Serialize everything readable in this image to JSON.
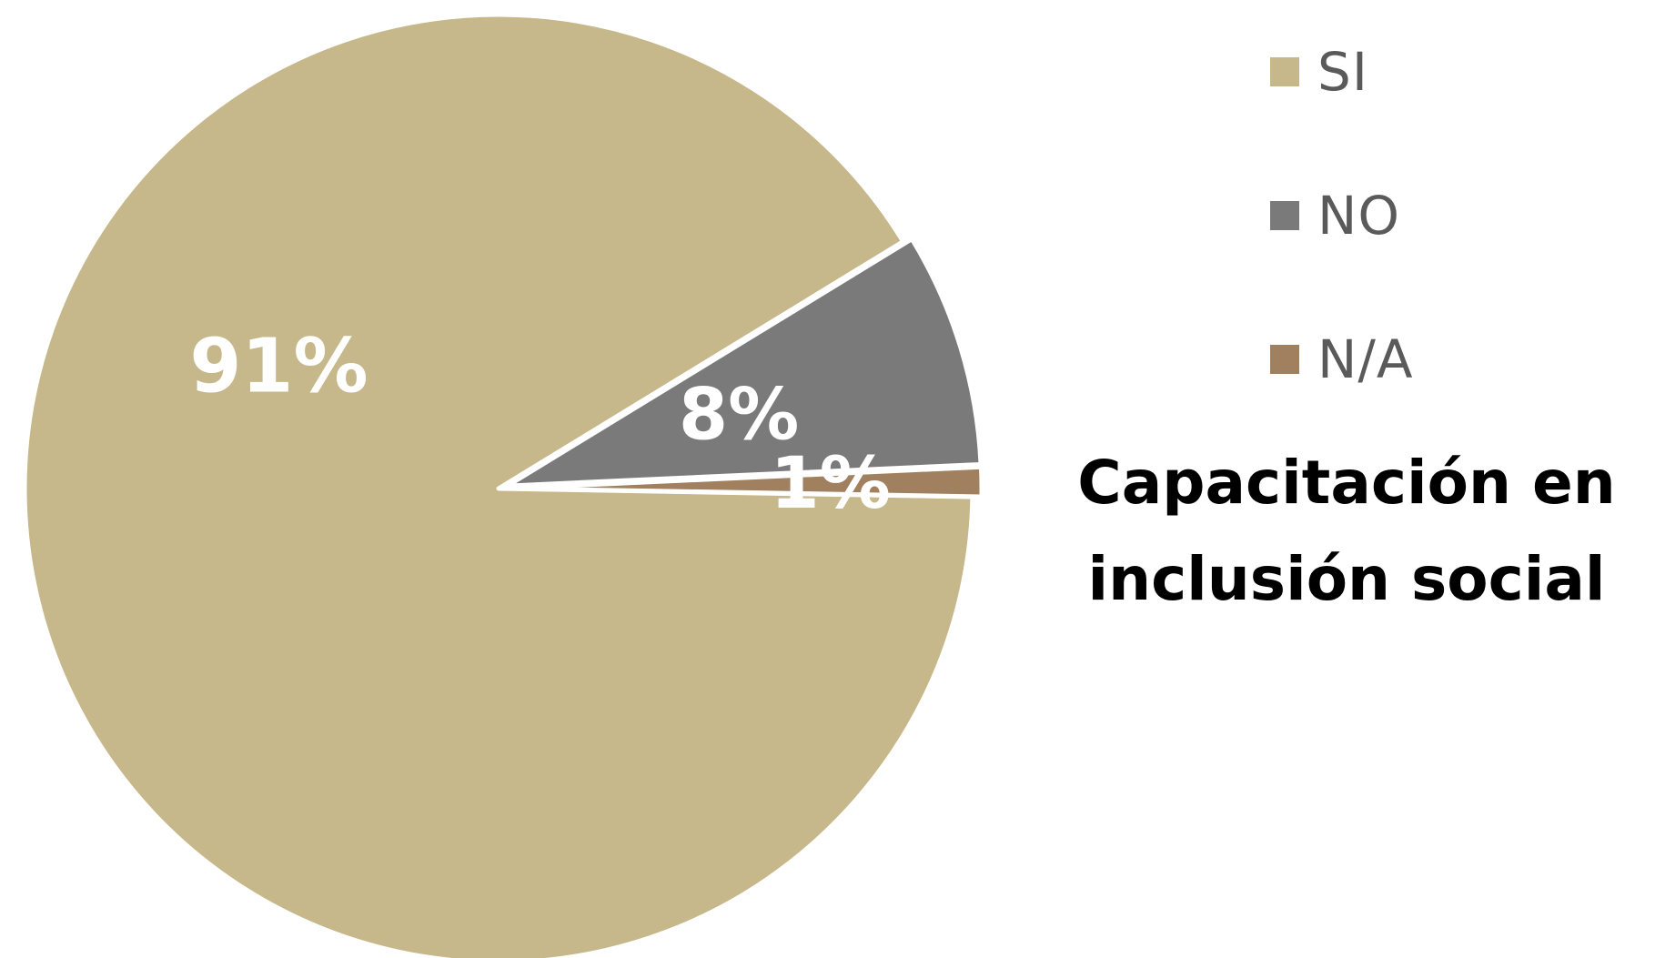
{
  "chart_data": {
    "type": "pie",
    "title": "Capacitación en inclusión social",
    "title_lines": [
      "Capacitación en",
      "inclusión social"
    ],
    "legend_position": "right",
    "categories": [
      "SI",
      "NO",
      "N/A"
    ],
    "values": [
      91,
      8,
      1
    ],
    "labels": [
      "91%",
      "8%",
      "1%"
    ],
    "colors": [
      "#C6B88A",
      "#7A7A7A",
      "#A0805F"
    ],
    "exploded": [
      false,
      true,
      true
    ],
    "start_angle_deg": 1
  }
}
